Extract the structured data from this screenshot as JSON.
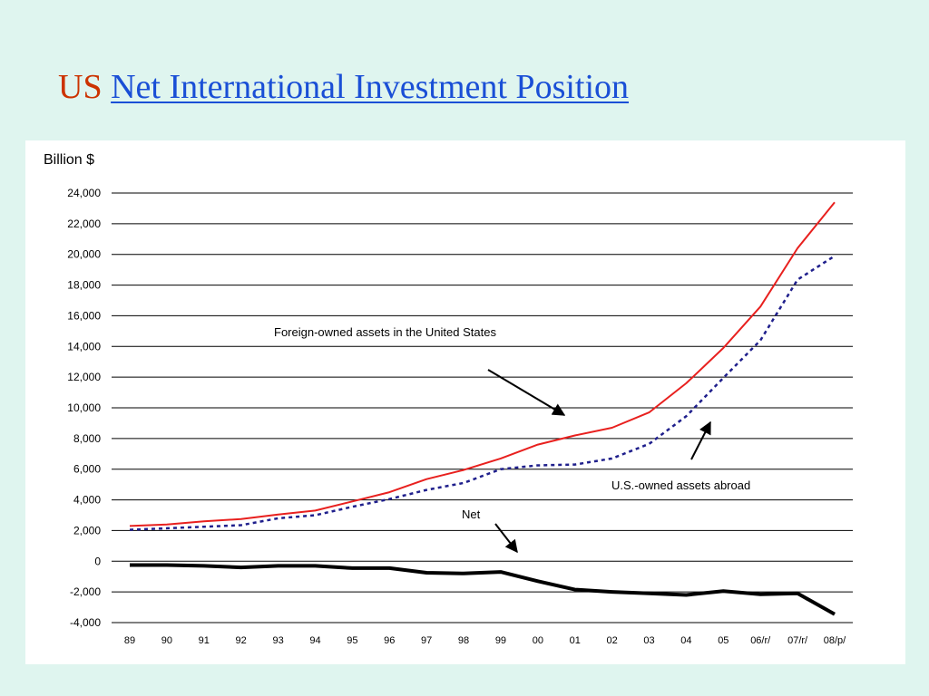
{
  "slide": {
    "title_prefix": "US",
    "title_link": "Net International Investment Position"
  },
  "colors": {
    "background": "#dff5ef",
    "title_prefix": "#cc3300",
    "title_link": "#1a4fd6",
    "foreign": "#e8201e",
    "us_owned": "#1f1f8c",
    "net": "#000000",
    "grid": "#000000"
  },
  "chart_data": {
    "type": "line",
    "title": "",
    "ylabel": "Billion $",
    "xlabel": "",
    "ylim": [
      -4000,
      24000
    ],
    "yticks": [
      24000,
      22000,
      20000,
      18000,
      16000,
      14000,
      12000,
      10000,
      8000,
      6000,
      4000,
      2000,
      0,
      -2000,
      -4000
    ],
    "ytick_labels": [
      "24,000",
      "22,000",
      "20,000",
      "18,000",
      "16,000",
      "14,000",
      "12,000",
      "10,000",
      "8,000",
      "6,000",
      "4,000",
      "2,000",
      "0",
      "-2,000",
      "-4,000"
    ],
    "grid": "horizontal",
    "categories": [
      "89",
      "90",
      "91",
      "92",
      "93",
      "94",
      "95",
      "96",
      "97",
      "98",
      "99",
      "00",
      "01",
      "02",
      "03",
      "04",
      "05",
      "06/r/",
      "07/r/",
      "08/p/"
    ],
    "series": [
      {
        "name": "Foreign-owned assets in the United States",
        "style": "solid",
        "values": [
          2300,
          2400,
          2600,
          2750,
          3050,
          3300,
          3900,
          4500,
          5350,
          5950,
          6700,
          7600,
          8200,
          8700,
          9700,
          11600,
          13900,
          16600,
          20400,
          23400
        ]
      },
      {
        "name": "U.S.-owned assets abroad",
        "style": "dotted",
        "values": [
          2050,
          2150,
          2250,
          2350,
          2800,
          3000,
          3550,
          4050,
          4650,
          5100,
          6000,
          6250,
          6300,
          6700,
          7650,
          9450,
          11950,
          14400,
          18350,
          19900
        ]
      },
      {
        "name": "Net",
        "style": "solid-thick",
        "values": [
          -250,
          -250,
          -300,
          -400,
          -300,
          -300,
          -450,
          -450,
          -750,
          -800,
          -700,
          -1300,
          -1850,
          -2000,
          -2100,
          -2200,
          -1950,
          -2150,
          -2100,
          -3450
        ]
      }
    ],
    "annotations": [
      {
        "text": "Foreign-owned assets in the United States"
      },
      {
        "text": "U.S.-owned assets abroad"
      },
      {
        "text": "Net"
      }
    ]
  }
}
